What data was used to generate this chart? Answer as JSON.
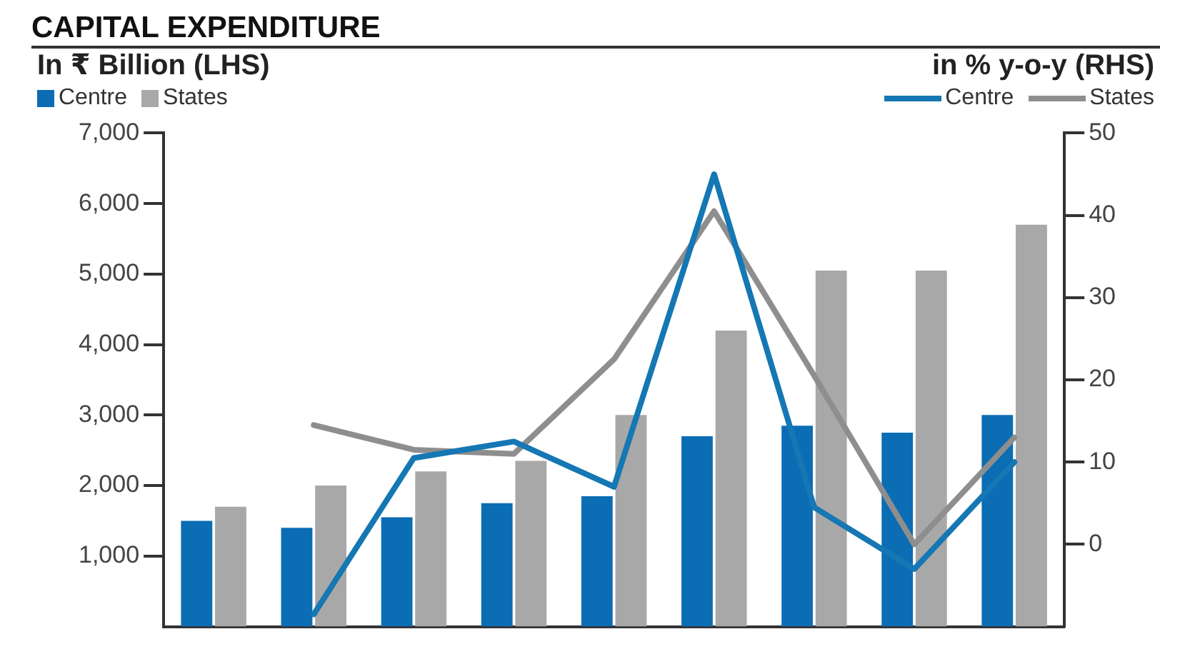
{
  "chart_data": {
    "type": "bar",
    "title": "CAPITAL EXPENDITURE",
    "ylabel": "In ₹ Billion (LHS)",
    "y2label": "in % y-o-y (RHS)",
    "categories": [
      null,
      null,
      null,
      null,
      null,
      null,
      null,
      null,
      null
    ],
    "series": [
      {
        "name": "Centre",
        "color": "#0b6db3",
        "values": [
          1500,
          1400,
          1550,
          1750,
          1850,
          2700,
          2850,
          2750,
          3000
        ]
      },
      {
        "name": "States",
        "color": "#a8a8a8",
        "values": [
          1700,
          2000,
          2200,
          2350,
          3000,
          4200,
          5050,
          5050,
          5700
        ]
      },
      {
        "name": "Centre",
        "type": "line",
        "axis": "y2",
        "color": "#1577b3",
        "values": [
          null,
          -8.5,
          10.5,
          12.5,
          7,
          45,
          4.5,
          -3,
          10
        ]
      },
      {
        "name": "States",
        "type": "line",
        "axis": "y2",
        "color": "#8e8e8e",
        "values": [
          null,
          14.5,
          11.5,
          11,
          22.5,
          40.5,
          20.5,
          0,
          13
        ]
      }
    ],
    "ylim": [
      0,
      7000
    ],
    "yticks": [
      {
        "value": 1000,
        "label": "1,000"
      },
      {
        "value": 2000,
        "label": "2,000"
      },
      {
        "value": 3000,
        "label": "3,000"
      },
      {
        "value": 4000,
        "label": "4,000"
      },
      {
        "value": 5000,
        "label": "5,000"
      },
      {
        "value": 6000,
        "label": "6,000"
      },
      {
        "value": 7000,
        "label": "7,000"
      }
    ],
    "y2lim": [
      -10,
      50
    ],
    "y2ticks": [
      0,
      10,
      20,
      30,
      40,
      50
    ],
    "tick_labels": "y",
    "grid": false,
    "legend": "top"
  }
}
